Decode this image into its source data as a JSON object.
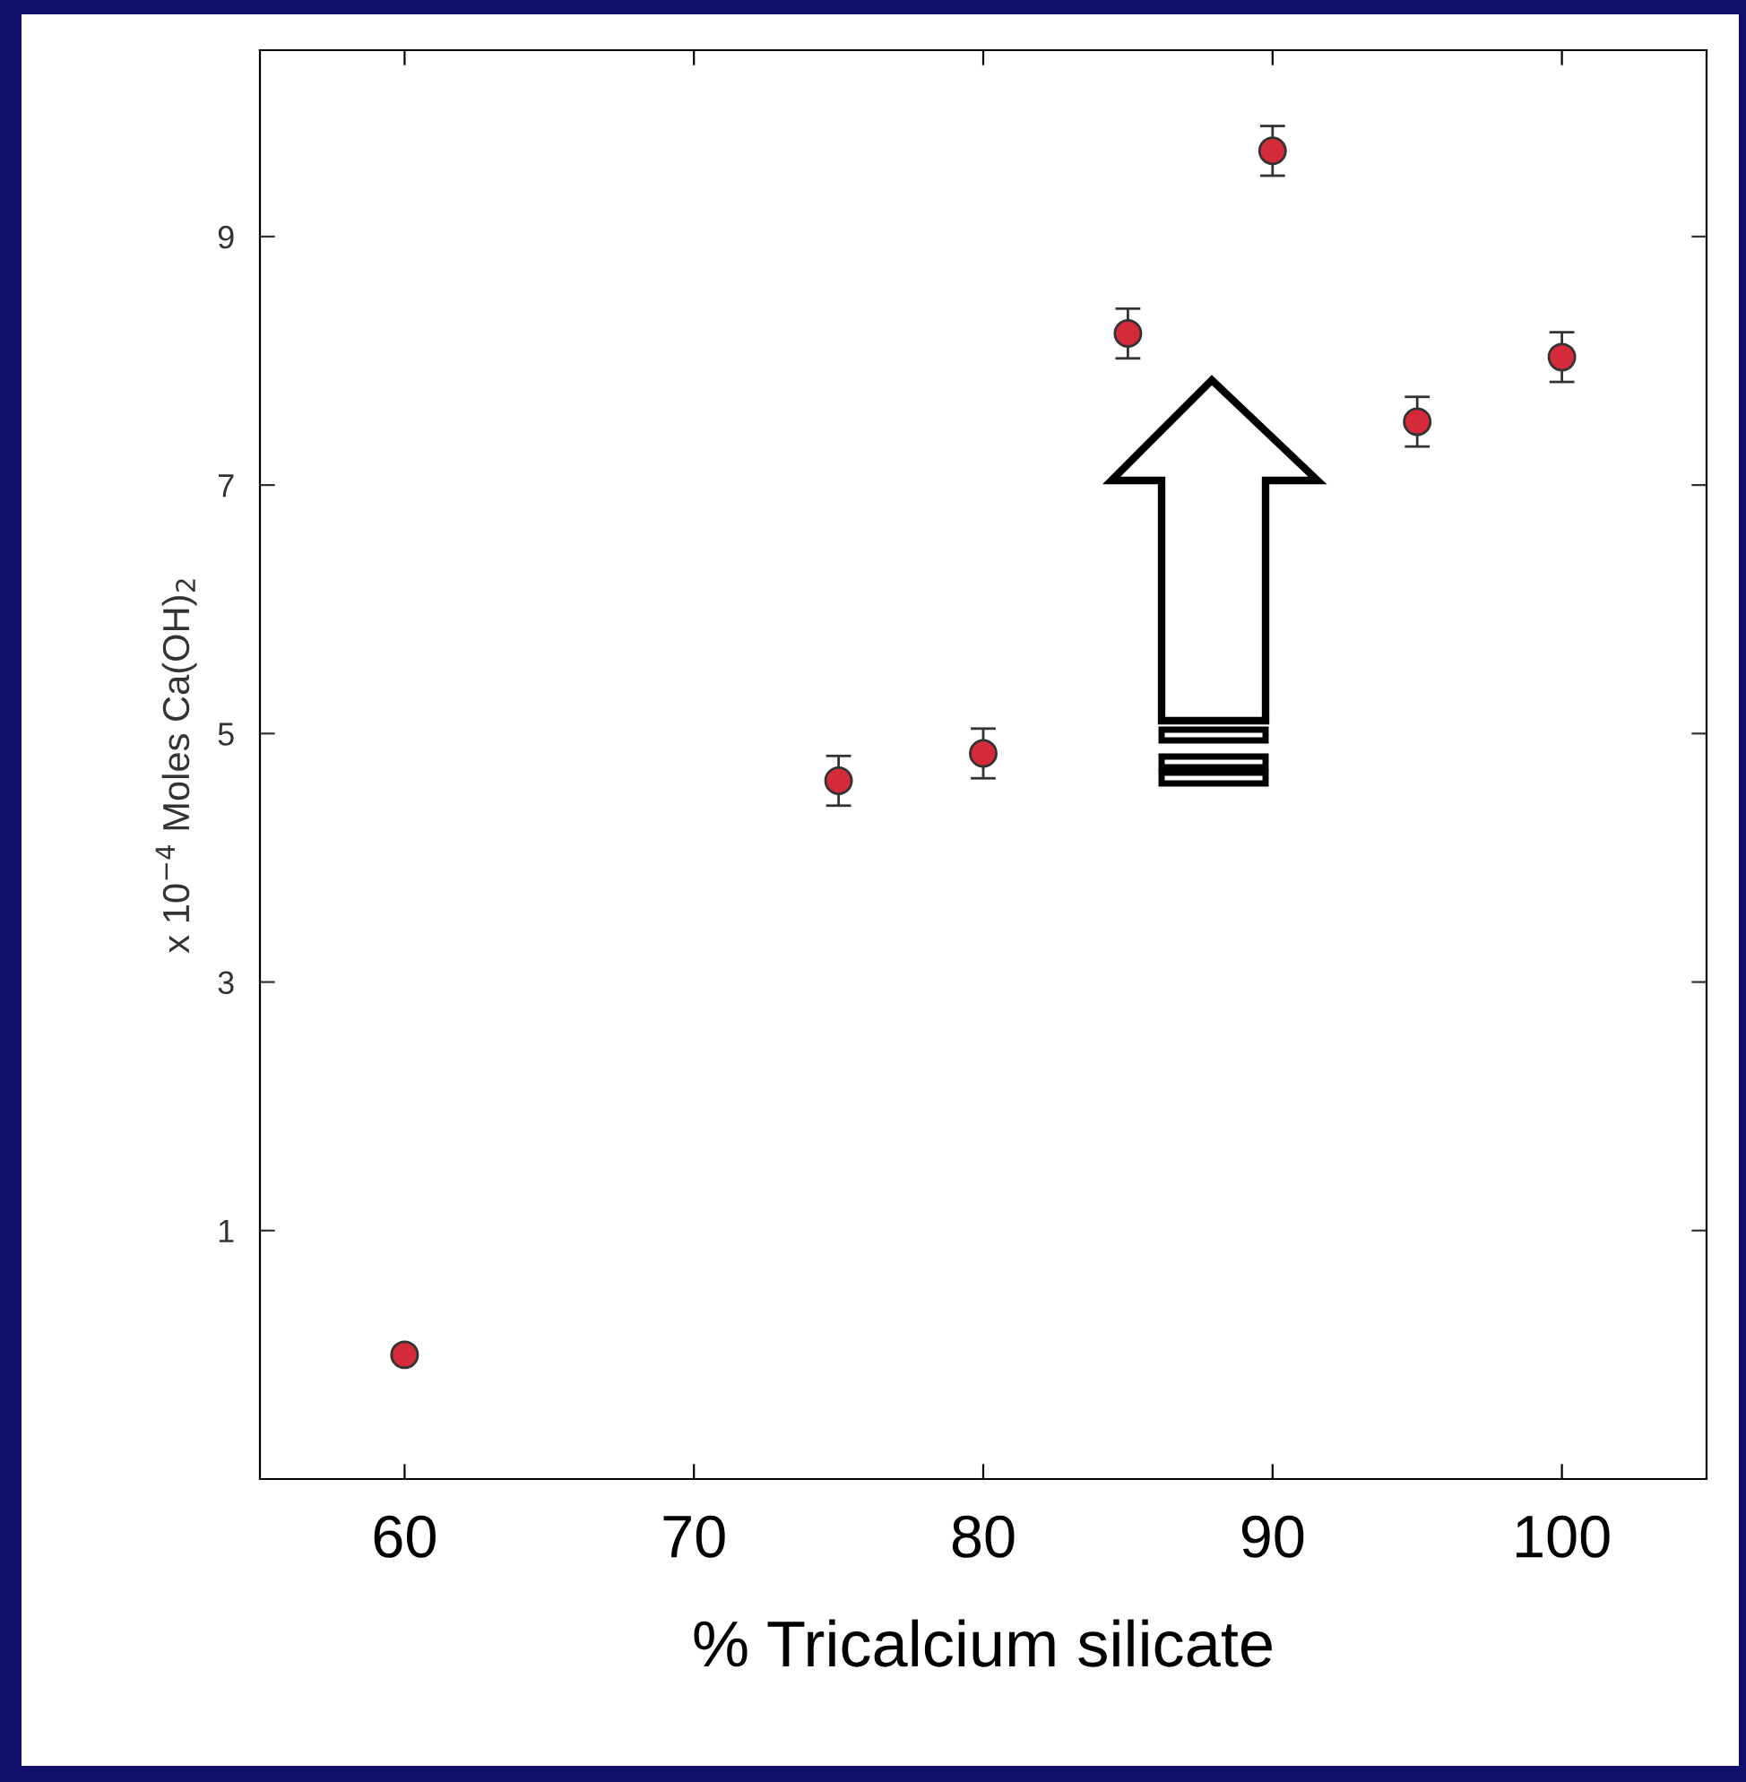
{
  "chart_data": {
    "type": "scatter",
    "xlabel": "% Tricalcium silicate",
    "ylabel": "x 10$^{−4}$ Moles Ca(OH)$_{2}$",
    "x": [
      60,
      75,
      80,
      85,
      90,
      95,
      100
    ],
    "values": [
      0.0,
      4.62,
      4.84,
      8.22,
      9.69,
      7.51,
      8.03
    ],
    "errors": [
      null,
      0.2,
      0.2,
      0.2,
      0.2,
      0.2,
      0.2
    ],
    "color": "#d42a3a",
    "marker": "circle",
    "xlim": [
      55,
      105
    ],
    "xticks": [
      60,
      70,
      80,
      90,
      100
    ],
    "ylim": [
      -1,
      10.5
    ],
    "yticks": [
      1,
      3,
      5,
      7,
      9
    ],
    "grid": false,
    "legend": false
  }
}
